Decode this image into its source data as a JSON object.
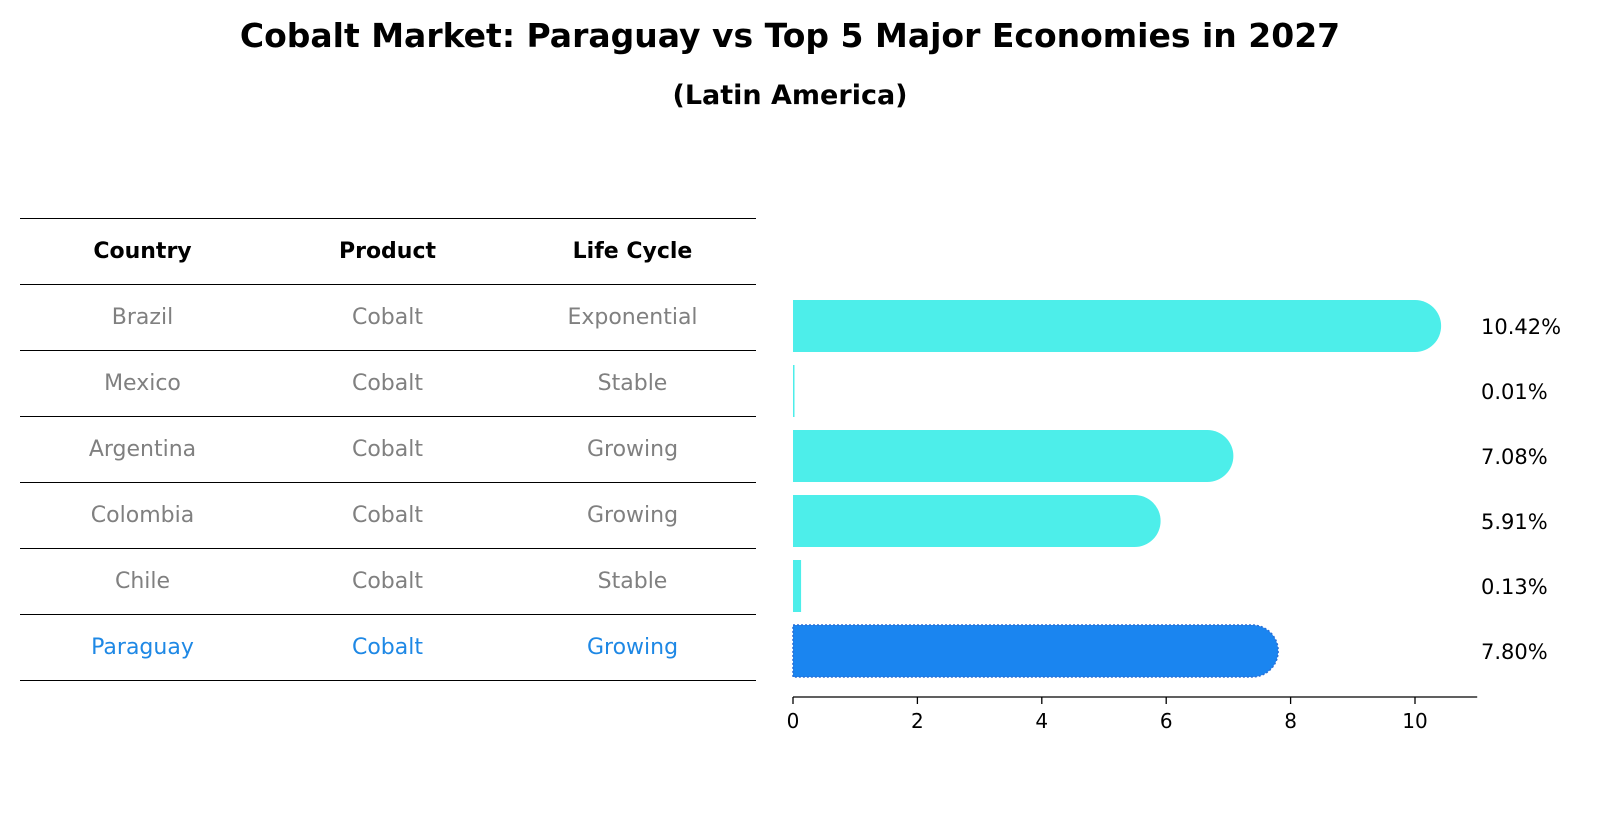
{
  "title": "Cobalt Market: Paraguay vs Top 5 Major Economies in 2027",
  "subtitle": "(Latin America)",
  "table": {
    "headers": [
      "Country",
      "Product",
      "Life Cycle"
    ],
    "rows": [
      {
        "country": "Brazil",
        "product": "Cobalt",
        "life_cycle": "Exponential"
      },
      {
        "country": "Mexico",
        "product": "Cobalt",
        "life_cycle": "Stable"
      },
      {
        "country": "Argentina",
        "product": "Cobalt",
        "life_cycle": "Growing"
      },
      {
        "country": "Colombia",
        "product": "Cobalt",
        "life_cycle": "Growing"
      },
      {
        "country": "Chile",
        "product": "Cobalt",
        "life_cycle": "Stable"
      },
      {
        "country": "Paraguay",
        "product": "Cobalt",
        "life_cycle": "Growing"
      }
    ]
  },
  "chart_data": {
    "type": "bar",
    "orientation": "horizontal",
    "categories": [
      "Brazil",
      "Mexico",
      "Argentina",
      "Colombia",
      "Chile",
      "Paraguay"
    ],
    "values": [
      10.42,
      0.01,
      7.08,
      5.91,
      0.13,
      7.8
    ],
    "value_labels": [
      "10.42%",
      "0.01%",
      "7.08%",
      "5.91%",
      "0.13%",
      "7.80%"
    ],
    "highlight": "Paraguay",
    "xlim": [
      0,
      11
    ],
    "xticks": [
      0,
      2,
      4,
      6,
      8,
      10
    ],
    "grid": false,
    "colors": {
      "default": "#4deeea",
      "highlight": "#1a85f0",
      "muted_text": "#808080",
      "highlight_text": "#1e88e5"
    }
  }
}
